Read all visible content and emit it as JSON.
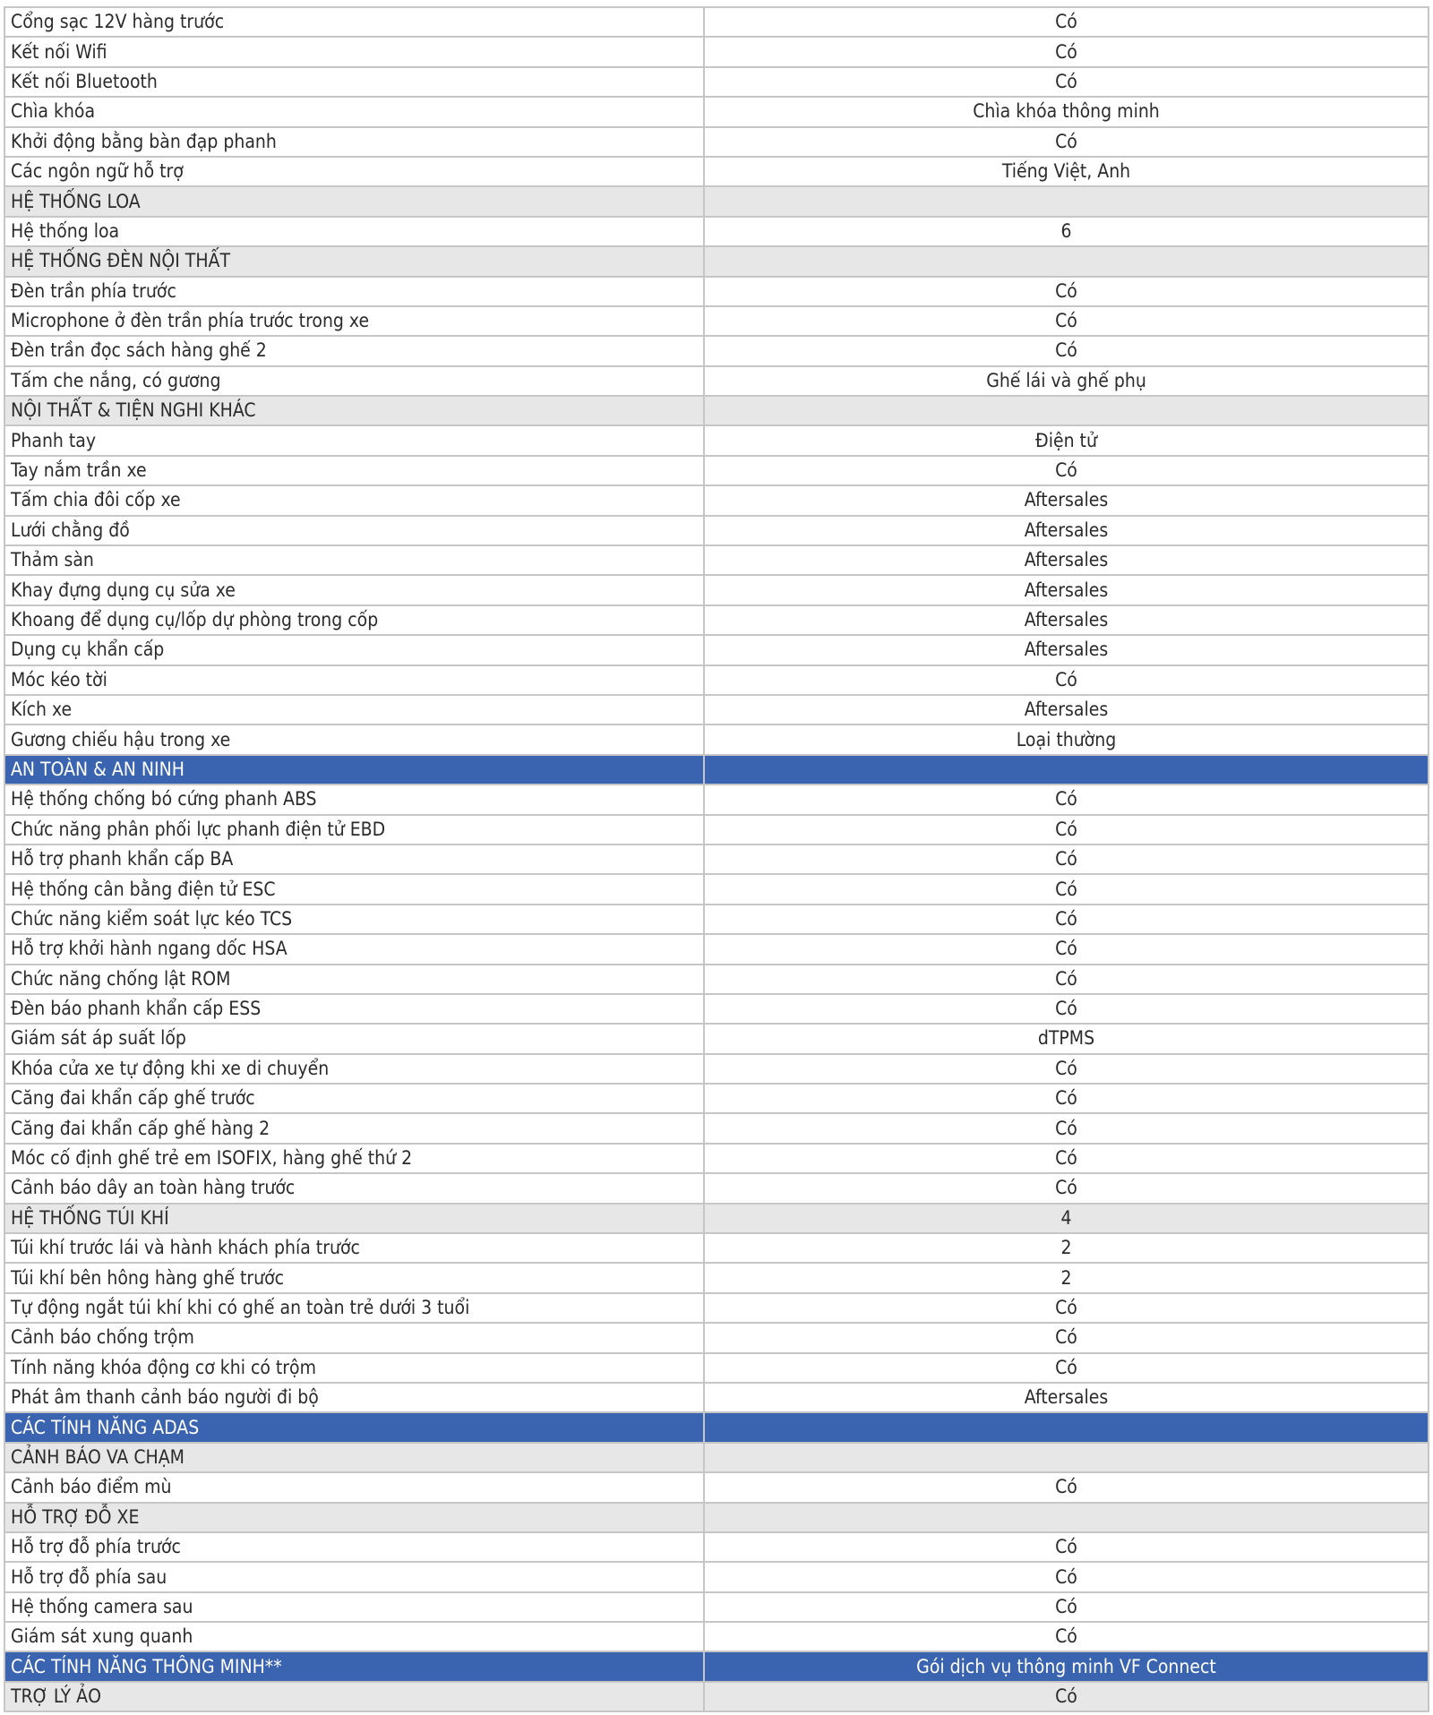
{
  "colors": {
    "section_bg": "#e7e7e7",
    "group_bg": "#3b64b0",
    "group_text": "#ffffff",
    "border": "#c6c6c6"
  },
  "rows": [
    {
      "type": "item",
      "label": "Cổng sạc 12V hàng trước",
      "value": "Có"
    },
    {
      "type": "item",
      "label": "Kết nối Wifi",
      "value": "Có"
    },
    {
      "type": "item",
      "label": "Kết nối Bluetooth",
      "value": "Có"
    },
    {
      "type": "item",
      "label": "Chìa khóa",
      "value": "Chìa khóa thông minh"
    },
    {
      "type": "item",
      "label": "Khởi động bằng bàn đạp phanh",
      "value": "Có"
    },
    {
      "type": "item",
      "label": "Các ngôn ngữ hỗ trợ",
      "value": "Tiếng Việt, Anh"
    },
    {
      "type": "section",
      "label": "HỆ THỐNG LOA",
      "value": ""
    },
    {
      "type": "item",
      "label": "Hệ thống loa",
      "value": "6"
    },
    {
      "type": "section",
      "label": "HỆ THỐNG ĐÈN NỘI THẤT",
      "value": ""
    },
    {
      "type": "item",
      "label": "Đèn trần phía trước",
      "value": "Có"
    },
    {
      "type": "item",
      "label": "Microphone ở đèn trần phía trước trong xe",
      "value": "Có"
    },
    {
      "type": "item",
      "label": "Đèn trần đọc sách hàng ghế 2",
      "value": "Có"
    },
    {
      "type": "item",
      "label": "Tấm che nắng, có gương",
      "value": "Ghế lái và ghế phụ"
    },
    {
      "type": "section",
      "label": "NỘI THẤT & TIỆN NGHI KHÁC",
      "value": ""
    },
    {
      "type": "item",
      "label": "Phanh tay",
      "value": "Điện tử"
    },
    {
      "type": "item",
      "label": "Tay nắm trần xe",
      "value": "Có"
    },
    {
      "type": "item",
      "label": "Tấm chia đôi cốp xe",
      "value": "Aftersales"
    },
    {
      "type": "item",
      "label": "Lưới chằng đồ",
      "value": "Aftersales"
    },
    {
      "type": "item",
      "label": "Thảm sàn",
      "value": "Aftersales"
    },
    {
      "type": "item",
      "label": "Khay đựng dụng cụ sửa xe",
      "value": "Aftersales"
    },
    {
      "type": "item",
      "label": "Khoang để dụng cụ/lốp dự phòng trong cốp",
      "value": "Aftersales"
    },
    {
      "type": "item",
      "label": "Dụng cụ khẩn cấp",
      "value": "Aftersales"
    },
    {
      "type": "item",
      "label": "Móc kéo tời",
      "value": "Có"
    },
    {
      "type": "item",
      "label": "Kích xe",
      "value": "Aftersales"
    },
    {
      "type": "item",
      "label": "Gương chiếu hậu trong xe",
      "value": "Loại thường"
    },
    {
      "type": "group",
      "label": "AN TOÀN & AN NINH",
      "value": ""
    },
    {
      "type": "item",
      "label": "Hệ thống chống bó cứng phanh ABS",
      "value": "Có"
    },
    {
      "type": "item",
      "label": "Chức năng phân phối lực phanh điện tử EBD",
      "value": "Có"
    },
    {
      "type": "item",
      "label": "Hỗ trợ phanh khẩn cấp BA",
      "value": "Có"
    },
    {
      "type": "item",
      "label": "Hệ thống cân bằng điện tử ESC",
      "value": "Có"
    },
    {
      "type": "item",
      "label": "Chức năng kiểm soát lực kéo TCS",
      "value": "Có"
    },
    {
      "type": "item",
      "label": "Hỗ trợ khởi hành ngang dốc HSA",
      "value": "Có"
    },
    {
      "type": "item",
      "label": "Chức năng chống lật ROM",
      "value": "Có"
    },
    {
      "type": "item",
      "label": "Đèn báo phanh khẩn cấp ESS",
      "value": "Có"
    },
    {
      "type": "item",
      "label": "Giám sát áp suất lốp",
      "value": "dTPMS"
    },
    {
      "type": "item",
      "label": "Khóa cửa xe tự động khi xe di chuyển",
      "value": "Có"
    },
    {
      "type": "item",
      "label": "Căng đai khẩn cấp ghế trước",
      "value": "Có"
    },
    {
      "type": "item",
      "label": "Căng đai khẩn cấp ghế hàng 2",
      "value": "Có"
    },
    {
      "type": "item",
      "label": "Móc cố định ghế trẻ em ISOFIX, hàng ghế thứ 2",
      "value": "Có"
    },
    {
      "type": "item",
      "label": "Cảnh báo dây an toàn hàng trước",
      "value": "Có"
    },
    {
      "type": "section",
      "label": "HỆ THỐNG TÚI KHÍ",
      "value": "4"
    },
    {
      "type": "item",
      "label": "Túi khí trước lái và hành khách phía trước",
      "value": "2"
    },
    {
      "type": "item",
      "label": "Túi khí bên hông hàng ghế trước",
      "value": "2"
    },
    {
      "type": "item",
      "label": "Tự động ngắt túi khí khi có ghế an toàn trẻ dưới 3 tuổi",
      "value": "Có"
    },
    {
      "type": "item",
      "label": "Cảnh báo chống trộm",
      "value": "Có"
    },
    {
      "type": "item",
      "label": "Tính năng khóa động cơ khi có trộm",
      "value": "Có"
    },
    {
      "type": "item",
      "label": "Phát âm thanh cảnh báo người đi bộ",
      "value": "Aftersales"
    },
    {
      "type": "group",
      "label": "CÁC TÍNH NĂNG ADAS",
      "value": ""
    },
    {
      "type": "section",
      "label": "CẢNH BÁO VA CHẠM",
      "value": ""
    },
    {
      "type": "item",
      "label": "Cảnh báo điểm mù",
      "value": "Có"
    },
    {
      "type": "section",
      "label": "HỖ TRỢ ĐỖ XE",
      "value": ""
    },
    {
      "type": "item",
      "label": "Hỗ trợ đỗ phía trước",
      "value": "Có"
    },
    {
      "type": "item",
      "label": "Hỗ trợ đỗ phía sau",
      "value": "Có"
    },
    {
      "type": "item",
      "label": "Hệ thống camera sau",
      "value": "Có"
    },
    {
      "type": "item",
      "label": "Giám sát xung quanh",
      "value": "Có"
    },
    {
      "type": "group",
      "label": "CÁC TÍNH NĂNG THÔNG MINH**",
      "value": "Gói dịch vụ thông minh VF Connect"
    },
    {
      "type": "section",
      "label": "TRỢ LÝ ẢO",
      "value": "Có"
    }
  ]
}
